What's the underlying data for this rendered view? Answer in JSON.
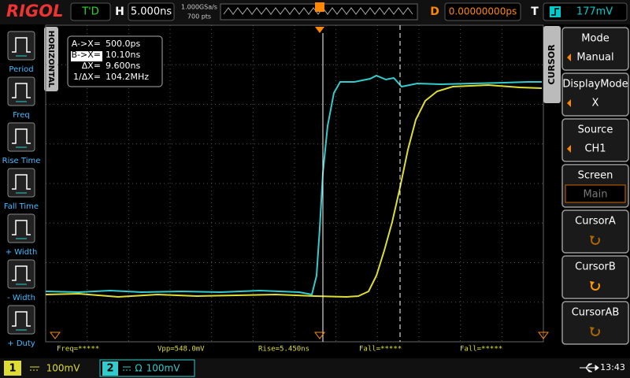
{
  "header": {
    "logo": "RIGOL",
    "status": "T'D",
    "timebase_label": "H",
    "timebase": "5.000ns",
    "sample_rate": "1.000GSa/s",
    "memory_depth": "700 pts",
    "delay_label": "D",
    "delay": "0.00000000ps",
    "trigger_label": "T",
    "trigger_level": "177mV"
  },
  "measure_menu": [
    "Period",
    "Freq",
    "Rise Time",
    "Fall Time",
    "+ Width",
    "- Width",
    "+ Duty"
  ],
  "horizontal_tab": "HORIZONTAL",
  "cursor_readout": [
    {
      "label": "A->X=",
      "value": "500.0ps"
    },
    {
      "label": "B->X=",
      "value": "10.10ns"
    },
    {
      "label": "ΔX=",
      "value": "9.600ns"
    },
    {
      "label": "1/ΔX=",
      "value": "104.2MHz"
    }
  ],
  "measurements": [
    "Freq=*****",
    "Vpp=548.0mV",
    "Rise=5.450ns",
    "Fall=*****",
    "Fall=*****"
  ],
  "cursor_menu": {
    "title": "CURSOR",
    "items": [
      {
        "label": "Mode",
        "value": "Manual"
      },
      {
        "label": "DisplayMode",
        "value": "X"
      },
      {
        "label": "Source",
        "value": "CH1"
      },
      {
        "label": "Screen",
        "value": "Main"
      },
      {
        "label": "CursorA"
      },
      {
        "label": "CursorB"
      },
      {
        "label": "CursorAB"
      }
    ]
  },
  "channels": [
    {
      "number": "1",
      "scale": "100mV"
    },
    {
      "number": "2",
      "impedance": "Ω",
      "scale": "100mV"
    }
  ],
  "clock": "13:43"
}
